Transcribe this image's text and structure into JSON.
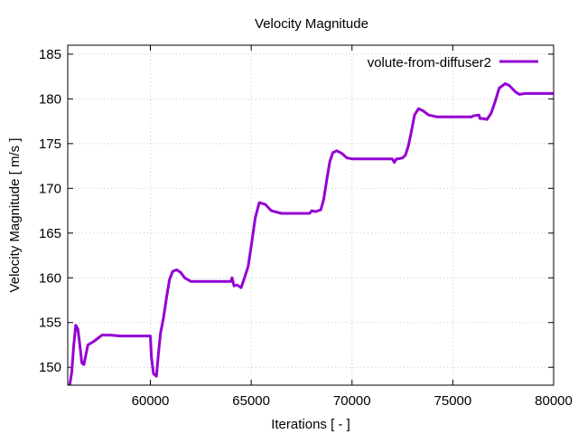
{
  "chart_data": {
    "type": "line",
    "title": "Velocity Magnitude",
    "xlabel": "Iterations [ - ]",
    "ylabel": "Velocity Magnitude [ m/s ]",
    "xlim": [
      55900,
      80000
    ],
    "ylim": [
      148,
      186
    ],
    "xticks": [
      60000,
      65000,
      70000,
      75000,
      80000
    ],
    "yticks": [
      150,
      155,
      160,
      165,
      170,
      175,
      180,
      185
    ],
    "grid": true,
    "legend_position": "top-right",
    "series": [
      {
        "name": "volute-from-diffuser2",
        "color": "#9400d3",
        "x": [
          56000,
          56100,
          56200,
          56300,
          56400,
          56500,
          56600,
          56700,
          56900,
          57200,
          57600,
          58000,
          58500,
          59000,
          59500,
          60000,
          60050,
          60150,
          60300,
          60400,
          60500,
          60650,
          60800,
          60950,
          61100,
          61300,
          61500,
          61700,
          62000,
          62500,
          63000,
          63500,
          64000,
          64050,
          64150,
          64300,
          64500,
          64700,
          64850,
          65000,
          65200,
          65400,
          65700,
          66000,
          66500,
          67000,
          67500,
          67900,
          68000,
          68200,
          68450,
          68600,
          68750,
          68900,
          69050,
          69250,
          69500,
          69750,
          70000,
          70500,
          71000,
          71500,
          72000,
          72100,
          72200,
          72300,
          72500,
          72650,
          72800,
          72950,
          73100,
          73300,
          73500,
          73800,
          74200,
          74600,
          75000,
          75500,
          75950,
          76000,
          76300,
          76350,
          76500,
          76700,
          76900,
          77100,
          77300,
          77600,
          77800,
          78100,
          78300,
          78600,
          79000,
          79500,
          80000
        ],
        "y": [
          148,
          149.5,
          152.5,
          154.7,
          154.3,
          152.5,
          150.5,
          150.3,
          152.5,
          152.9,
          153.6,
          153.6,
          153.5,
          153.5,
          153.5,
          153.5,
          151.2,
          149.3,
          149.0,
          151.6,
          153.8,
          155.5,
          157.8,
          159.8,
          160.7,
          160.9,
          160.6,
          160.0,
          159.6,
          159.6,
          159.6,
          159.6,
          159.6,
          160.0,
          159.1,
          159.2,
          158.9,
          160.2,
          161.3,
          163.5,
          166.7,
          168.4,
          168.2,
          167.5,
          167.2,
          167.2,
          167.2,
          167.2,
          167.5,
          167.4,
          167.6,
          168.8,
          171.0,
          173.0,
          174.0,
          174.2,
          173.9,
          173.4,
          173.3,
          173.3,
          173.3,
          173.3,
          173.3,
          172.9,
          173.3,
          173.3,
          173.4,
          173.7,
          174.8,
          176.4,
          178.2,
          178.9,
          178.7,
          178.2,
          178.0,
          178.0,
          178.0,
          178.0,
          178.0,
          178.1,
          178.2,
          177.8,
          177.8,
          177.7,
          178.4,
          179.7,
          181.2,
          181.7,
          181.5,
          180.8,
          180.5,
          180.6,
          180.6,
          180.6,
          180.6
        ]
      }
    ]
  }
}
